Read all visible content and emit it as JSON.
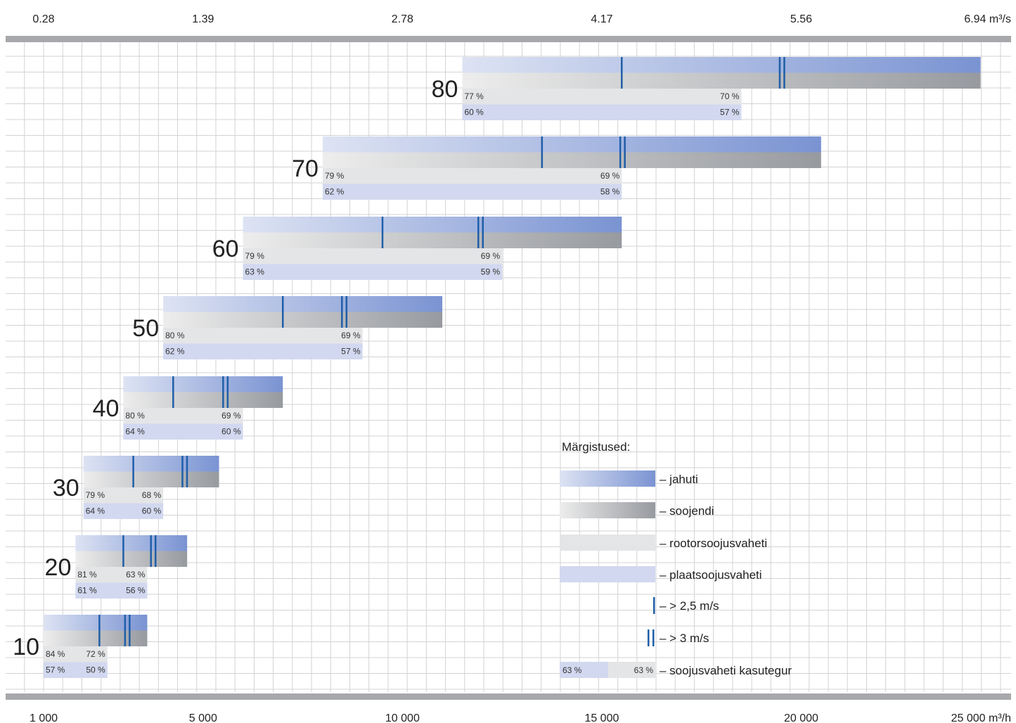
{
  "chart_data": {
    "type": "bar",
    "top_axis": {
      "ticks": [
        "0.28",
        "1.39",
        "2.78",
        "4.17",
        "5.56",
        "6.94"
      ],
      "unit_last": "m³/s"
    },
    "bottom_axis": {
      "ticks": [
        "1 000",
        "5 000",
        "10 000",
        "15 000",
        "20 000",
        "25 000"
      ],
      "tick_values": [
        1000,
        5000,
        10000,
        15000,
        20000,
        25000
      ],
      "unit_last": "m³/h",
      "range": [
        1000,
        26000
      ]
    },
    "units": [
      {
        "size": "10",
        "cooler": [
          1000,
          3600
        ],
        "heater": [
          1000,
          3600
        ],
        "v25": 2400,
        "v3": 3100,
        "rotor": [
          1000,
          2600
        ],
        "plate": [
          1000,
          2600
        ],
        "rotor_eff": [
          "84 %",
          "72 %"
        ],
        "plate_eff": [
          "57 %",
          "50 %"
        ]
      },
      {
        "size": "20",
        "cooler": [
          1800,
          4600
        ],
        "heater": [
          1800,
          4600
        ],
        "v25": 3000,
        "v3": 3750,
        "rotor": [
          1800,
          3600
        ],
        "plate": [
          1800,
          3600
        ],
        "rotor_eff": [
          "81 %",
          "63 %"
        ],
        "plate_eff": [
          "61 %",
          "56 %"
        ]
      },
      {
        "size": "30",
        "cooler": [
          2000,
          5400
        ],
        "heater": [
          2000,
          5400
        ],
        "v25": 3250,
        "v3": 4540,
        "rotor": [
          2000,
          4000
        ],
        "plate": [
          2000,
          4000
        ],
        "rotor_eff": [
          "79 %",
          "68 %"
        ],
        "plate_eff": [
          "64 %",
          "60 %"
        ]
      },
      {
        "size": "40",
        "cooler": [
          3000,
          7000
        ],
        "heater": [
          3000,
          7000
        ],
        "v25": 4250,
        "v3": 5560,
        "rotor": [
          3000,
          6000
        ],
        "plate": [
          3000,
          6000
        ],
        "rotor_eff": [
          "80 %",
          "69 %"
        ],
        "plate_eff": [
          "64 %",
          "60 %"
        ]
      },
      {
        "size": "50",
        "cooler": [
          4000,
          11000
        ],
        "heater": [
          4000,
          11000
        ],
        "v25": 7000,
        "v3": 8540,
        "rotor": [
          4000,
          9000
        ],
        "plate": [
          4000,
          9000
        ],
        "rotor_eff": [
          "80 %",
          "69 %"
        ],
        "plate_eff": [
          "62 %",
          "57 %"
        ]
      },
      {
        "size": "60",
        "cooler": [
          6000,
          15500
        ],
        "heater": [
          6000,
          15500
        ],
        "v25": 9500,
        "v3": 11960,
        "rotor": [
          6000,
          12500
        ],
        "plate": [
          6000,
          12500
        ],
        "rotor_eff": [
          "79 %",
          "69 %"
        ],
        "plate_eff": [
          "63 %",
          "59 %"
        ]
      },
      {
        "size": "70",
        "cooler": [
          8000,
          20500
        ],
        "heater": [
          8000,
          20500
        ],
        "v25": 13500,
        "v3": 15520,
        "rotor": [
          8000,
          15500
        ],
        "plate": [
          8000,
          15500
        ],
        "rotor_eff": [
          "79 %",
          "69 %"
        ],
        "plate_eff": [
          "62 %",
          "58 %"
        ]
      },
      {
        "size": "80",
        "cooler": [
          11500,
          24500
        ],
        "heater": [
          11500,
          24500
        ],
        "v25": 15500,
        "v3": 19520,
        "rotor": [
          11500,
          18500
        ],
        "plate": [
          11500,
          18500
        ],
        "rotor_eff": [
          "77 %",
          "70 %"
        ],
        "plate_eff": [
          "60 %",
          "57 %"
        ]
      }
    ],
    "legend": {
      "title": "Märgistused:",
      "items": [
        {
          "key": "cooler",
          "label": "– jahuti"
        },
        {
          "key": "heater",
          "label": "– soojendi"
        },
        {
          "key": "rotor",
          "label": "– rootorsoojusvaheti"
        },
        {
          "key": "plate",
          "label": "– plaatsoojusvaheti"
        },
        {
          "key": "v25",
          "label": "– > 2,5 m/s"
        },
        {
          "key": "v3",
          "label": "– > 3 m/s"
        },
        {
          "key": "eff",
          "label": "– soojusvaheti kasutegur",
          "sample_left": "63 %",
          "sample_right": "63 %"
        }
      ]
    },
    "colors": {
      "cooler_light": "#dde3f3",
      "cooler_dark": "#7a93d2",
      "heater_light": "#ededed",
      "heater_dark": "#979a9f",
      "rotor": "#e4e5e7",
      "plate": "#d2d8ef",
      "marker": "#1f5ea8",
      "axis_bar": "#a6a8ab",
      "grid": "#d3d3d3"
    }
  }
}
